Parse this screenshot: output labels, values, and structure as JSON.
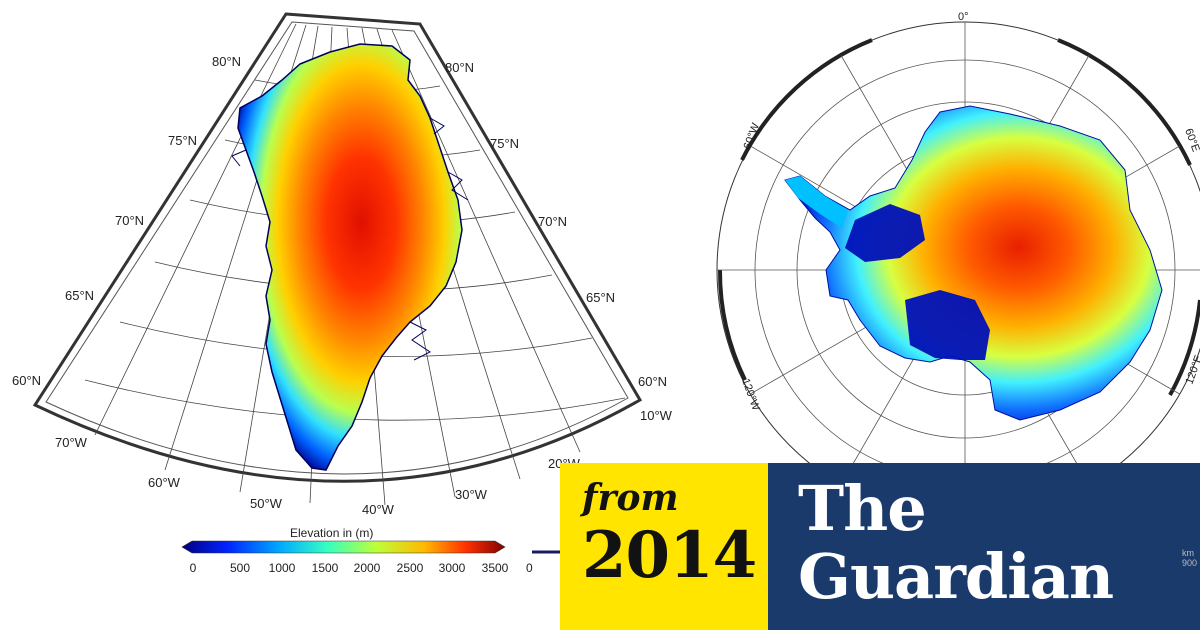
{
  "greenland": {
    "lat_labels_left": [
      "80°N",
      "75°N",
      "70°N",
      "65°N",
      "60°N"
    ],
    "lat_labels_right": [
      "80°N",
      "75°N",
      "70°N",
      "65°N",
      "60°N"
    ],
    "lon_labels": [
      "70°W",
      "60°W",
      "50°W",
      "40°W",
      "30°W",
      "20°W",
      "10°W"
    ]
  },
  "colorbar": {
    "title": "Elevation in (m)",
    "ticks": [
      "0",
      "500",
      "1000",
      "1500",
      "2000",
      "2500",
      "3000",
      "3500"
    ],
    "colors": [
      "#00007f",
      "#0022ff",
      "#00a8ff",
      "#35ffc2",
      "#bdff39",
      "#ffb900",
      "#ff3000",
      "#7f0000"
    ]
  },
  "antarctica": {
    "lon_labels": [
      "0°",
      "60°W",
      "60°E",
      "120°W",
      "120°E"
    ],
    "colorbar_start": "0",
    "colorbar_fragment_top": "km",
    "colorbar_fragment_bottom": "900"
  },
  "badge": {
    "from": "from",
    "year": "2014",
    "brand_line1": "The",
    "brand_line2": "Guardian",
    "year_bg": "#ffe500",
    "brand_bg": "#1a3a6b"
  }
}
